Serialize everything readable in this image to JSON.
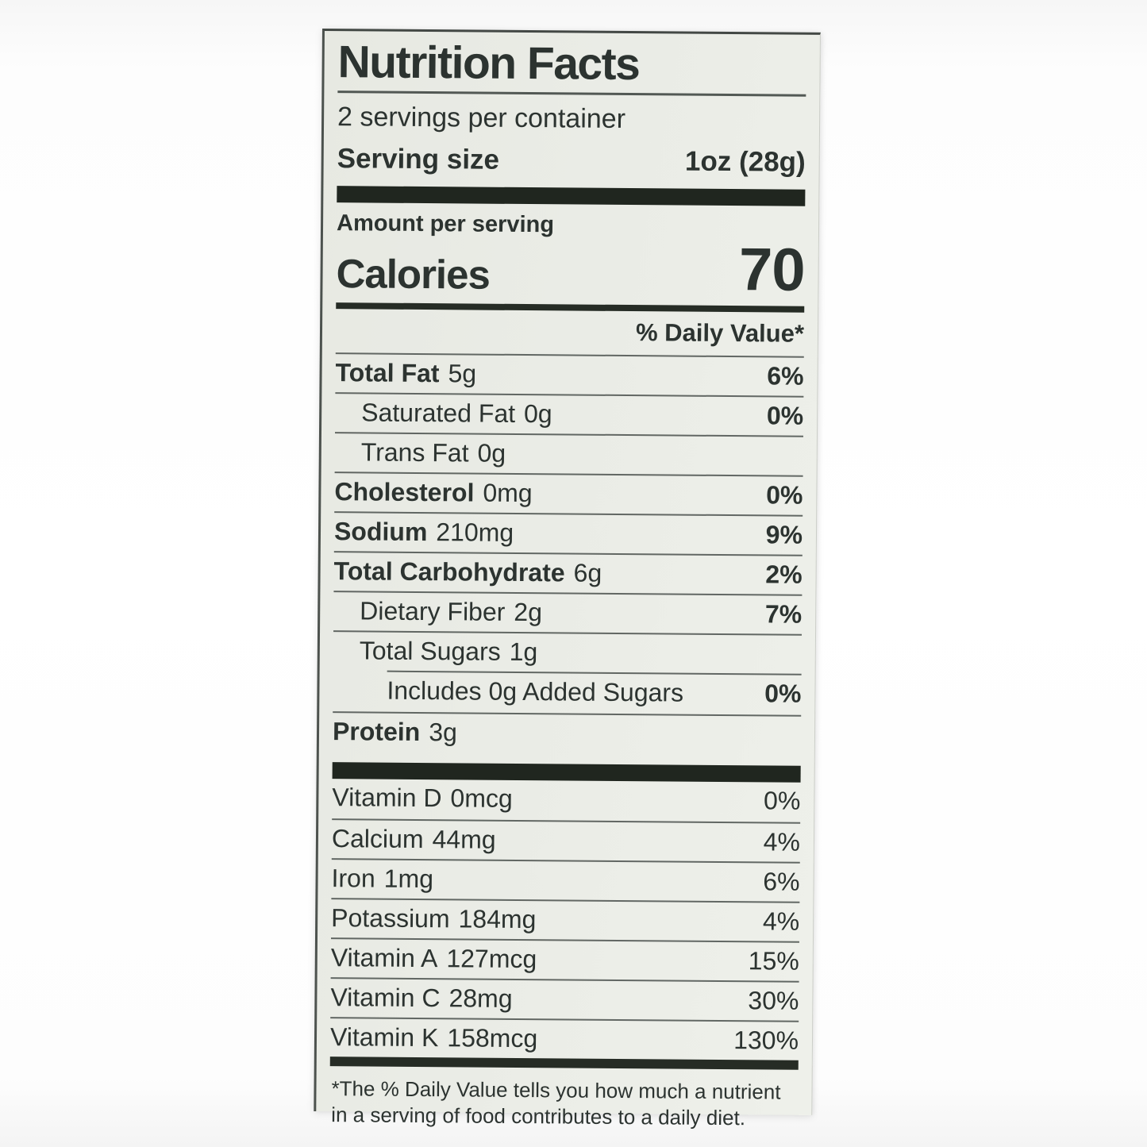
{
  "label": {
    "title": "Nutrition Facts",
    "servings_per_container": "2 servings per container",
    "serving_size_label": "Serving size",
    "serving_size_value": "1oz (28g)",
    "amount_per_serving": "Amount per serving",
    "calories_label": "Calories",
    "calories_value": "70",
    "daily_value_header": "% Daily Value*",
    "nutrients": [
      {
        "name": "Total Fat",
        "amount": "5g",
        "dv": "6%",
        "bold": true,
        "indent": 0
      },
      {
        "name": "Saturated Fat",
        "amount": "0g",
        "dv": "0%",
        "bold": false,
        "indent": 1
      },
      {
        "name": "Trans Fat",
        "amount": "0g",
        "dv": "",
        "bold": false,
        "indent": 1
      },
      {
        "name": "Cholesterol",
        "amount": "0mg",
        "dv": "0%",
        "bold": true,
        "indent": 0
      },
      {
        "name": "Sodium",
        "amount": "210mg",
        "dv": "9%",
        "bold": true,
        "indent": 0
      },
      {
        "name": "Total Carbohydrate",
        "amount": "6g",
        "dv": "2%",
        "bold": true,
        "indent": 0
      },
      {
        "name": "Dietary Fiber",
        "amount": "2g",
        "dv": "7%",
        "bold": false,
        "indent": 1
      },
      {
        "name": "Total Sugars",
        "amount": "1g",
        "dv": "",
        "bold": false,
        "indent": 1
      },
      {
        "name": "Includes 0g Added Sugars",
        "amount": "",
        "dv": "0%",
        "bold": false,
        "indent": 2,
        "sep": "indent"
      },
      {
        "name": "Protein",
        "amount": "3g",
        "dv": "",
        "bold": true,
        "indent": 0
      }
    ],
    "micronutrients": [
      {
        "name": "Vitamin D",
        "amount": "0mcg",
        "dv": "0%"
      },
      {
        "name": "Calcium",
        "amount": "44mg",
        "dv": "4%"
      },
      {
        "name": "Iron",
        "amount": "1mg",
        "dv": "6%"
      },
      {
        "name": "Potassium",
        "amount": "184mg",
        "dv": "4%"
      },
      {
        "name": "Vitamin A",
        "amount": "127mcg",
        "dv": "15%"
      },
      {
        "name": "Vitamin C",
        "amount": "28mg",
        "dv": "30%"
      },
      {
        "name": "Vitamin K",
        "amount": "158mcg",
        "dv": "130%"
      }
    ],
    "footnote": "*The % Daily Value tells you how much a nutrient in a serving of food contributes to a daily diet."
  },
  "colors": {
    "ink": "#2c3330",
    "label_background": "#e9ebe4",
    "bar": "#20261f",
    "page_background": "#fdfdfd"
  }
}
